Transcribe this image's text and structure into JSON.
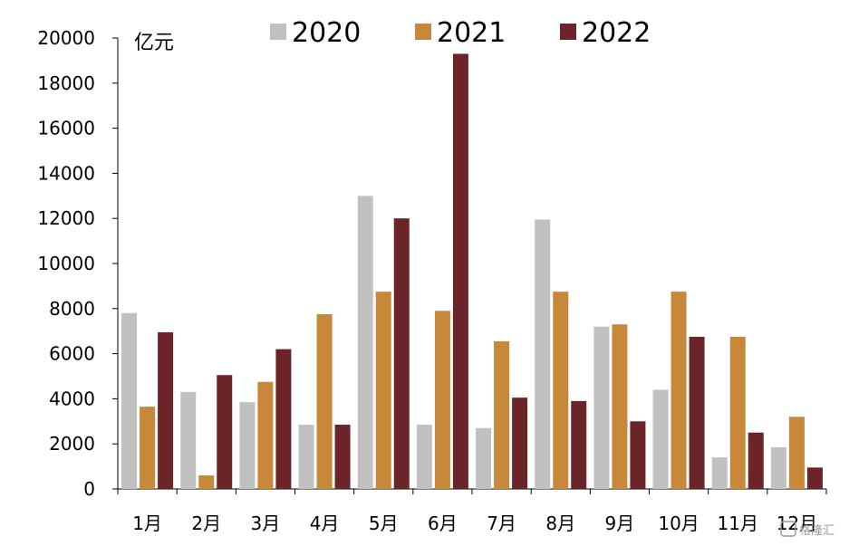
{
  "chart_data": {
    "type": "bar",
    "ylabel": "亿元",
    "ylim": [
      0,
      20000
    ],
    "yticks": [
      0,
      2000,
      4000,
      6000,
      8000,
      10000,
      12000,
      14000,
      16000,
      18000,
      20000
    ],
    "categories": [
      "1月",
      "2月",
      "3月",
      "4月",
      "5月",
      "6月",
      "7月",
      "8月",
      "9月",
      "10月",
      "11月",
      "12月"
    ],
    "series": [
      {
        "name": "2020",
        "color": "#c0c0c0",
        "values": [
          7800,
          4300,
          3850,
          2850,
          13000,
          2850,
          2700,
          11950,
          7200,
          4400,
          1400,
          1850
        ]
      },
      {
        "name": "2021",
        "color": "#c8883a",
        "values": [
          3650,
          600,
          4750,
          7750,
          8750,
          7900,
          6550,
          8750,
          7300,
          8750,
          6750,
          3200
        ]
      },
      {
        "name": "2022",
        "color": "#6b2428",
        "values": [
          6950,
          5050,
          6200,
          2850,
          12000,
          19300,
          4050,
          3900,
          3000,
          6750,
          2500,
          950
        ]
      }
    ],
    "legend_position": "top-center",
    "grid": false
  },
  "watermark": "格隆汇"
}
